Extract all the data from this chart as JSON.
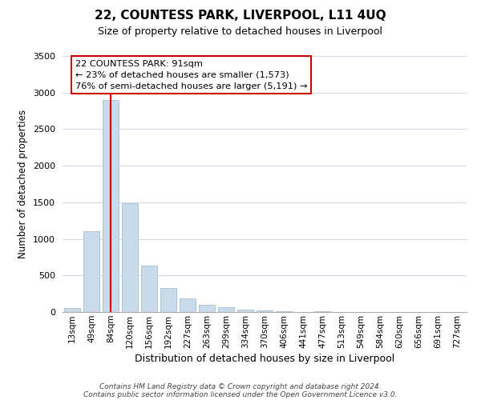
{
  "title": "22, COUNTESS PARK, LIVERPOOL, L11 4UQ",
  "subtitle": "Size of property relative to detached houses in Liverpool",
  "xlabel": "Distribution of detached houses by size in Liverpool",
  "ylabel": "Number of detached properties",
  "bar_color": "#c9daea",
  "bar_edge_color": "#9ab8cc",
  "background_color": "#ffffff",
  "grid_color": "#d0d8e8",
  "annotation_box_edge": "#cc0000",
  "vline_color": "#cc0000",
  "categories": [
    "13sqm",
    "49sqm",
    "84sqm",
    "120sqm",
    "156sqm",
    "192sqm",
    "227sqm",
    "263sqm",
    "299sqm",
    "334sqm",
    "370sqm",
    "406sqm",
    "441sqm",
    "477sqm",
    "513sqm",
    "549sqm",
    "584sqm",
    "620sqm",
    "656sqm",
    "691sqm",
    "727sqm"
  ],
  "values": [
    50,
    1100,
    2900,
    1490,
    630,
    330,
    190,
    100,
    65,
    35,
    20,
    10,
    5,
    15,
    5,
    5,
    3,
    2,
    2,
    2,
    1
  ],
  "vline_x_value": 2,
  "ylim": [
    0,
    3500
  ],
  "yticks": [
    0,
    500,
    1000,
    1500,
    2000,
    2500,
    3000,
    3500
  ],
  "annotation_text": "22 COUNTESS PARK: 91sqm\n← 23% of detached houses are smaller (1,573)\n76% of semi-detached houses are larger (5,191) →",
  "footnote1": "Contains HM Land Registry data © Crown copyright and database right 2024.",
  "footnote2": "Contains public sector information licensed under the Open Government Licence v3.0."
}
